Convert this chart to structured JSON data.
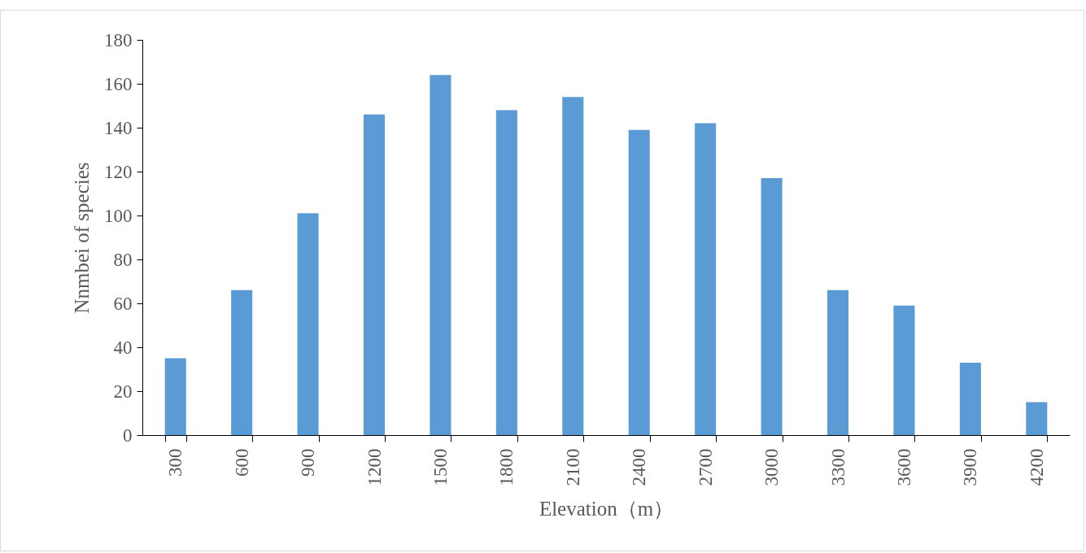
{
  "chart_data": {
    "type": "bar",
    "xlabel": "Elevation（m）",
    "ylabel": "Nnmbei of species",
    "categories": [
      "300",
      "600",
      "900",
      "1200",
      "1500",
      "1800",
      "2100",
      "2400",
      "2700",
      "3000",
      "3300",
      "3600",
      "3900",
      "4200"
    ],
    "values": [
      35,
      66,
      101,
      146,
      164,
      148,
      154,
      139,
      142,
      117,
      66,
      59,
      33,
      15
    ],
    "color": "#5b9bd5",
    "ylim": [
      0,
      180
    ],
    "yticks": [
      0,
      20,
      40,
      60,
      80,
      100,
      120,
      140,
      160,
      180
    ],
    "grid": false
  }
}
